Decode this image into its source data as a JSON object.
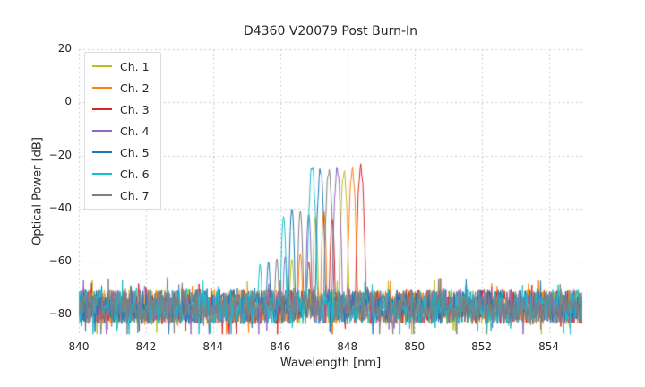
{
  "chart_data": {
    "type": "line",
    "title": "D4360 V20079 Post Burn-In",
    "xlabel": "Wavelength [nm]",
    "ylabel": "Optical Power [dB]",
    "xlim": [
      840,
      855
    ],
    "ylim": [
      -88,
      20
    ],
    "xticks": [
      840,
      842,
      844,
      846,
      848,
      850,
      852,
      854
    ],
    "yticks": [
      20,
      0,
      -20,
      -40,
      -60,
      -80
    ],
    "grid": true,
    "grid_color": "#cccccc",
    "legend_position": "upper-left",
    "noise_floor_db": -77,
    "noise_spread_db": 13,
    "series": [
      {
        "name": "Ch. 1",
        "color": "#bcbd22",
        "peak_nm": 847.9,
        "peak_db": -26.5,
        "side_modes": [
          {
            "nm": 847.05,
            "db": -43
          },
          {
            "nm": 846.35,
            "db": -59
          }
        ]
      },
      {
        "name": "Ch. 2",
        "color": "#ff7f0e",
        "peak_nm": 848.15,
        "peak_db": -25.5,
        "side_modes": [
          {
            "nm": 847.3,
            "db": -41
          },
          {
            "nm": 846.6,
            "db": -57
          }
        ]
      },
      {
        "name": "Ch. 3",
        "color": "#d62728",
        "peak_nm": 848.4,
        "peak_db": -24.5,
        "side_modes": [
          {
            "nm": 847.55,
            "db": -44
          },
          {
            "nm": 846.85,
            "db": -60
          }
        ]
      },
      {
        "name": "Ch. 4",
        "color": "#9467bd",
        "peak_nm": 847.7,
        "peak_db": -25.0,
        "side_modes": [
          {
            "nm": 846.85,
            "db": -42
          },
          {
            "nm": 846.15,
            "db": -58
          }
        ]
      },
      {
        "name": "Ch. 5",
        "color": "#1f77b4",
        "peak_nm": 847.2,
        "peak_db": -25.5,
        "side_modes": [
          {
            "nm": 846.35,
            "db": -40
          },
          {
            "nm": 845.65,
            "db": -60
          }
        ]
      },
      {
        "name": "Ch. 6",
        "color": "#17becf",
        "peak_nm": 846.95,
        "peak_db": -24.0,
        "side_modes": [
          {
            "nm": 846.1,
            "db": -43
          },
          {
            "nm": 845.4,
            "db": -61
          }
        ]
      },
      {
        "name": "Ch. 7",
        "color": "#7f7f7f",
        "peak_nm": 847.45,
        "peak_db": -26.0,
        "side_modes": [
          {
            "nm": 846.6,
            "db": -41
          },
          {
            "nm": 845.9,
            "db": -59
          }
        ]
      }
    ]
  }
}
